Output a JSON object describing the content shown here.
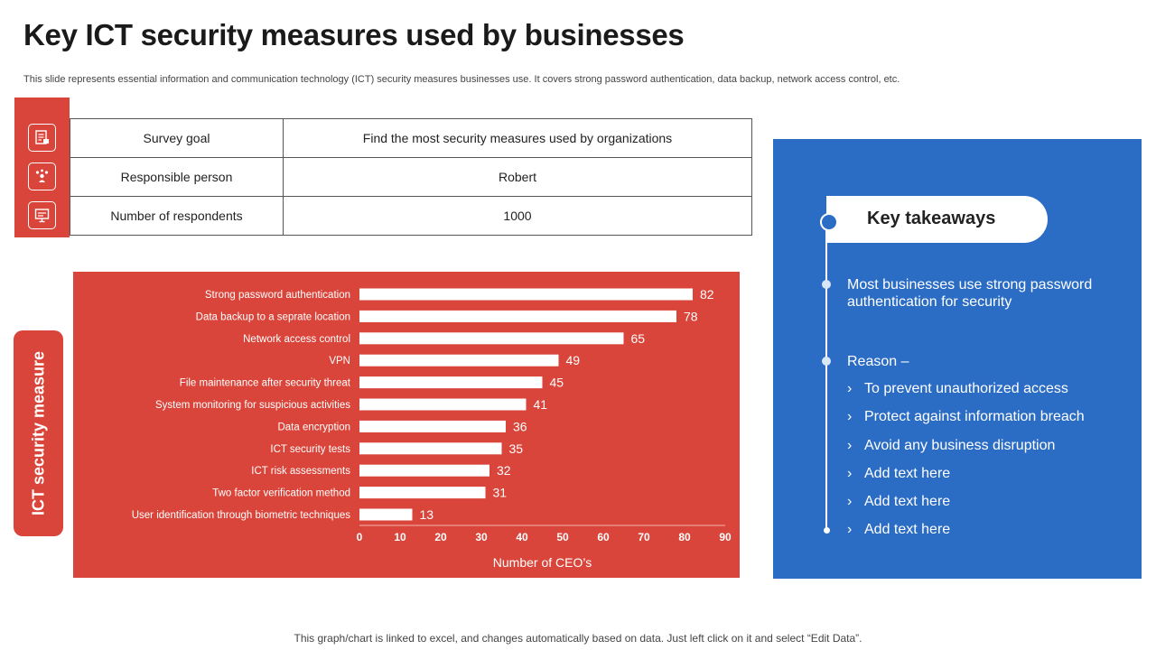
{
  "header": {
    "title": "Key ICT security measures used by businesses",
    "subtitle": "This slide represents essential information and communication technology (ICT) security measures businesses use. It covers strong password authentication, data backup, network access control, etc."
  },
  "icons": [
    "document-icon",
    "team-icon",
    "presentation-icon"
  ],
  "survey": [
    {
      "label": "Survey goal",
      "value": "Find the most security measures used by organizations"
    },
    {
      "label": "Responsible person",
      "value": "Robert"
    },
    {
      "label": "Number of respondents",
      "value": "1000"
    }
  ],
  "side_label": "ICT security measure",
  "chart_data": {
    "type": "bar",
    "orientation": "horizontal",
    "categories": [
      "Strong password authentication",
      "Data backup to a seprate location",
      "Network access control",
      "VPN",
      "File maintenance after security threat",
      "System monitoring for suspicious activities",
      "Data encryption",
      "ICT security tests",
      "ICT risk assessments",
      "Two factor  verification method",
      "User identification through biometric techniques"
    ],
    "values": [
      82,
      78,
      65,
      49,
      45,
      41,
      36,
      35,
      32,
      31,
      13
    ],
    "xlabel": "Number of CEO’s",
    "xlim": [
      0,
      90
    ],
    "xticks": [
      0,
      10,
      20,
      30,
      40,
      50,
      60,
      70,
      80,
      90
    ],
    "colors": {
      "background": "#d9453a",
      "bar": "#ffffff",
      "text": "#ffffff"
    }
  },
  "takeaways": {
    "title": "Key takeaways",
    "point": "Most businesses use strong password authentication  for security",
    "reason_label": "Reason –",
    "bullets": [
      "To prevent unauthorized  access",
      "Protect against information breach",
      "Avoid any business disruption",
      "Add text here",
      "Add text here",
      "Add text here"
    ],
    "bullet_glyph": "›"
  },
  "footer": "This graph/chart is linked to excel,  and changes automatically based on data. Just left click on it and select “Edit Data”.",
  "colors": {
    "accent_red": "#d9453a",
    "accent_blue": "#2b6cc4"
  }
}
